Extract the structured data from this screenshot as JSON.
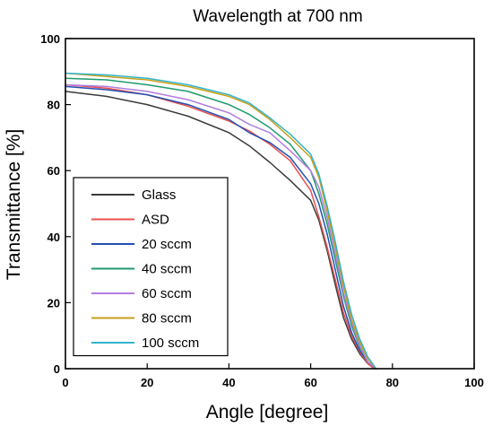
{
  "chart_data": {
    "type": "line",
    "title": "Wavelength at 700 nm",
    "xlabel": "Angle [degree]",
    "ylabel": "Transmittance [%]",
    "xlim": [
      0,
      100
    ],
    "ylim": [
      0,
      100
    ],
    "xticks": [
      0,
      20,
      40,
      60,
      80,
      100
    ],
    "yticks": [
      0,
      20,
      40,
      60,
      80,
      100
    ],
    "grid": false,
    "legend_position": "bottom-left",
    "series": [
      {
        "name": "Glass",
        "color": "#3a3a3a",
        "x": [
          0,
          10,
          20,
          30,
          40,
          45,
          50,
          55,
          60,
          62,
          64,
          66,
          68,
          70,
          72,
          74,
          76
        ],
        "y": [
          84,
          82.5,
          80,
          76.5,
          71.5,
          67.5,
          62.5,
          57,
          51,
          45,
          36,
          25.5,
          15.5,
          9,
          4.5,
          1.5,
          0
        ]
      },
      {
        "name": "ASD",
        "color": "#e8514b",
        "x": [
          0,
          10,
          20,
          30,
          40,
          45,
          50,
          55,
          60,
          62,
          64,
          66,
          68,
          70,
          72,
          74,
          75.5
        ],
        "y": [
          86,
          85,
          83,
          79.5,
          75,
          72,
          68,
          63,
          54,
          46,
          37,
          27,
          17,
          10,
          5,
          1.5,
          0
        ]
      },
      {
        "name": "20 sccm",
        "color": "#2350b5",
        "x": [
          0,
          10,
          20,
          30,
          40,
          45,
          50,
          55,
          60,
          62,
          64,
          66,
          68,
          70,
          72,
          74,
          76
        ],
        "y": [
          85.5,
          84.5,
          83,
          80,
          75.5,
          71.5,
          68.5,
          64,
          56,
          50,
          41,
          30,
          19,
          11,
          5.5,
          2,
          0
        ]
      },
      {
        "name": "40 sccm",
        "color": "#1e9a6e",
        "x": [
          0,
          10,
          20,
          30,
          40,
          45,
          50,
          55,
          60,
          62,
          64,
          66,
          68,
          70,
          72,
          74,
          76
        ],
        "y": [
          88,
          87.5,
          86,
          84,
          80,
          77,
          73,
          68,
          60,
          53,
          44,
          33,
          22,
          13,
          6.5,
          2,
          0
        ]
      },
      {
        "name": "60 sccm",
        "color": "#b07ee0",
        "x": [
          0,
          10,
          20,
          30,
          40,
          45,
          50,
          55,
          60,
          62,
          64,
          66,
          68,
          70,
          72,
          74,
          76
        ],
        "y": [
          86,
          85.5,
          84,
          81.5,
          77.5,
          74,
          71.5,
          66,
          60,
          55,
          46,
          35,
          23,
          14,
          7,
          2,
          0
        ]
      },
      {
        "name": "80 sccm",
        "color": "#c8a018",
        "x": [
          0,
          10,
          20,
          30,
          40,
          45,
          50,
          55,
          60,
          62,
          64,
          66,
          68,
          70,
          72,
          74,
          76
        ],
        "y": [
          89.5,
          88.5,
          87.5,
          85.5,
          82.5,
          80,
          75.5,
          70,
          64,
          58,
          48,
          37,
          25,
          15,
          8,
          3,
          0
        ]
      },
      {
        "name": "100 sccm",
        "color": "#32b4cc",
        "x": [
          0,
          10,
          20,
          30,
          40,
          45,
          50,
          55,
          60,
          62,
          64,
          66,
          68,
          70,
          72,
          74,
          76
        ],
        "y": [
          89.5,
          89,
          88,
          86,
          83,
          80.5,
          76,
          71,
          65,
          59,
          49.5,
          38.5,
          26.5,
          16.5,
          9,
          3.5,
          0
        ]
      }
    ]
  }
}
